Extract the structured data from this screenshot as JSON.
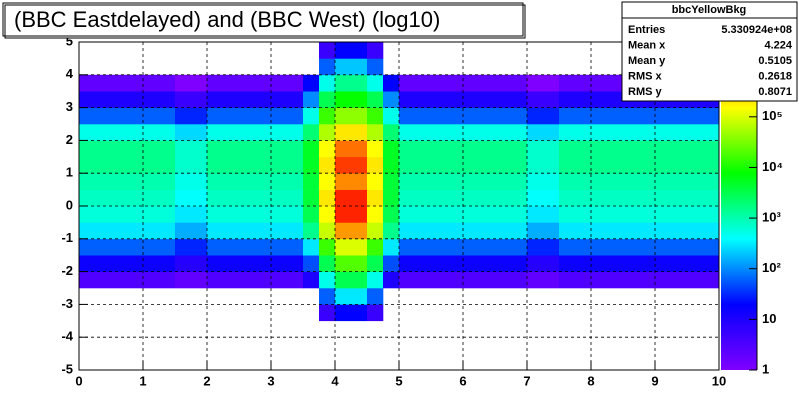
{
  "chart_data": {
    "type": "heatmap",
    "title": "(BBC Eastdelayed) and (BBC West) (log10)",
    "xbins": [
      0,
      0.5,
      1,
      1.5,
      2,
      2.5,
      3,
      3.5,
      3.75,
      4,
      4.25,
      4.5,
      4.75,
      5,
      5.5,
      6,
      6.5,
      7,
      7.5,
      8,
      8.5,
      9,
      9.5,
      10
    ],
    "ybins": [
      -3.5,
      -3,
      -2.5,
      -2,
      -1.5,
      -1,
      -0.5,
      0,
      0.5,
      1,
      1.5,
      2,
      2.5,
      3,
      3.5,
      4,
      4.5,
      5
    ],
    "values": [
      [
        null,
        null,
        null,
        null,
        null,
        null,
        null,
        null,
        5,
        20,
        20,
        5,
        null,
        null,
        null,
        null,
        null,
        null,
        null,
        null,
        null,
        null,
        null
      ],
      [
        null,
        null,
        null,
        null,
        null,
        null,
        null,
        null,
        60,
        300,
        300,
        60,
        null,
        null,
        null,
        null,
        null,
        null,
        null,
        null,
        null,
        null,
        null
      ],
      [
        3,
        3,
        3,
        2,
        3,
        3,
        3,
        10,
        500,
        3000,
        3000,
        500,
        10,
        3,
        3,
        3,
        3,
        2,
        3,
        3,
        3,
        3,
        3
      ],
      [
        15,
        15,
        15,
        8,
        15,
        15,
        15,
        50,
        3000,
        20000,
        20000,
        3000,
        50,
        15,
        15,
        15,
        15,
        8,
        15,
        15,
        15,
        15,
        15
      ],
      [
        60,
        60,
        60,
        30,
        60,
        60,
        60,
        300,
        15000,
        100000,
        100000,
        15000,
        300,
        60,
        60,
        60,
        60,
        30,
        60,
        60,
        60,
        60,
        60
      ],
      [
        300,
        300,
        300,
        150,
        300,
        300,
        300,
        1500,
        80000,
        500000,
        500000,
        80000,
        1500,
        300,
        300,
        300,
        300,
        150,
        300,
        300,
        300,
        300,
        300
      ],
      [
        600,
        600,
        600,
        300,
        600,
        600,
        600,
        3000,
        150000,
        2000000,
        2000000,
        150000,
        3000,
        600,
        600,
        600,
        600,
        300,
        600,
        600,
        600,
        600,
        600
      ],
      [
        800,
        800,
        800,
        400,
        800,
        800,
        800,
        4000,
        200000,
        2000000,
        2000000,
        200000,
        4000,
        800,
        800,
        800,
        800,
        400,
        800,
        800,
        800,
        800,
        800
      ],
      [
        1000,
        1000,
        1000,
        500,
        1000,
        1000,
        1000,
        4000,
        150000,
        600000,
        600000,
        150000,
        4000,
        1000,
        1000,
        1000,
        1000,
        500,
        1000,
        1000,
        1000,
        1000,
        1000
      ],
      [
        1500,
        1500,
        1500,
        700,
        1500,
        1500,
        1500,
        5000,
        200000,
        1500000,
        1500000,
        200000,
        5000,
        1500,
        1500,
        1500,
        1500,
        700,
        1500,
        1500,
        1500,
        1500,
        1500
      ],
      [
        1500,
        1500,
        1500,
        700,
        1500,
        1500,
        1500,
        5000,
        150000,
        800000,
        800000,
        150000,
        5000,
        1500,
        1500,
        1500,
        1500,
        700,
        1500,
        1500,
        1500,
        1500,
        1500
      ],
      [
        500,
        500,
        500,
        250,
        500,
        500,
        500,
        2000,
        60000,
        200000,
        200000,
        60000,
        2000,
        500,
        500,
        500,
        500,
        250,
        500,
        500,
        500,
        500,
        500
      ],
      [
        60,
        60,
        60,
        30,
        60,
        60,
        60,
        500,
        15000,
        40000,
        40000,
        15000,
        500,
        60,
        60,
        60,
        60,
        30,
        60,
        60,
        60,
        60,
        60
      ],
      [
        10,
        10,
        10,
        5,
        10,
        10,
        10,
        100,
        3000,
        8000,
        8000,
        3000,
        100,
        10,
        10,
        10,
        10,
        5,
        10,
        10,
        10,
        10,
        10
      ],
      [
        2,
        2,
        2,
        1,
        2,
        2,
        2,
        20,
        500,
        1500,
        1500,
        500,
        20,
        2,
        2,
        2,
        2,
        1,
        2,
        2,
        2,
        2,
        2
      ],
      [
        null,
        null,
        null,
        null,
        null,
        null,
        null,
        null,
        60,
        200,
        200,
        60,
        null,
        null,
        null,
        null,
        null,
        null,
        null,
        null,
        null,
        null,
        null
      ],
      [
        null,
        null,
        null,
        null,
        null,
        null,
        null,
        null,
        5,
        20,
        20,
        5,
        null,
        null,
        null,
        null,
        null,
        null,
        null,
        null,
        null,
        null,
        null
      ]
    ],
    "xlim": [
      0,
      10
    ],
    "xticks": [
      0,
      1,
      2,
      3,
      4,
      5,
      6,
      7,
      8,
      9,
      10
    ],
    "ylim": [
      -5,
      5
    ],
    "yticks": [
      -5,
      -4,
      -3,
      -2,
      -1,
      0,
      1,
      2,
      3,
      4,
      5
    ],
    "zlim": [
      1,
      3000000
    ],
    "zlog": true,
    "zticks": [
      1,
      10,
      {
        "value": 100,
        "label": "10²"
      },
      {
        "value": 1000,
        "label": "10³"
      },
      {
        "value": 10000,
        "label": "10⁴"
      },
      {
        "value": 100000,
        "label": "10⁵"
      },
      {
        "value": 1000000,
        "label": "10⁶"
      }
    ],
    "palette": [
      "#7f00ff",
      "#0000ff",
      "#00ffff",
      "#00ff00",
      "#ffff00",
      "#ff0000"
    ],
    "grid": true,
    "stats": {
      "name": "bbcYellowBkg",
      "rows": [
        {
          "label": "Entries",
          "value": "5.330924e+08"
        },
        {
          "label": "Mean x",
          "value": "4.224"
        },
        {
          "label": "Mean y",
          "value": "0.5105"
        },
        {
          "label": "RMS x",
          "value": "0.2618"
        },
        {
          "label": "RMS y",
          "value": "0.8071"
        }
      ]
    }
  }
}
